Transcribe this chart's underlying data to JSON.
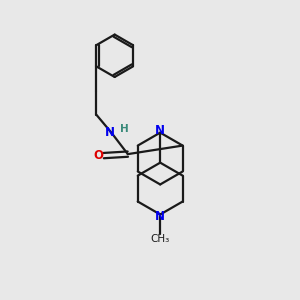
{
  "bg_color": "#e8e8e8",
  "bond_color": "#1a1a1a",
  "N_color": "#0000ee",
  "O_color": "#dd0000",
  "H_color": "#3a8a7a",
  "text_color": "#1a1a1a",
  "figsize": [
    3.0,
    3.0
  ],
  "dpi": 100,
  "xlim": [
    0,
    10
  ],
  "ylim": [
    0,
    10
  ]
}
